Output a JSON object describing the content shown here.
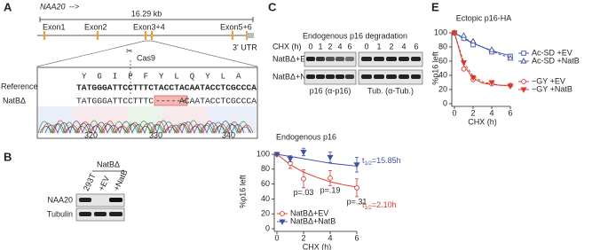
{
  "panel_labels": [
    "A",
    "B",
    "C",
    "D",
    "E"
  ],
  "panel_a": {
    "gene": "NAA20",
    "arrow": "-->",
    "scale": "16.29 kb",
    "exons": [
      "Exon1",
      "Exon2",
      "Exon3+4",
      "Exon5+6"
    ],
    "utr": "3' UTR",
    "cas9": "Cas9",
    "reference_label": "Reference",
    "amino_acids": [
      "Y",
      "G",
      "I",
      "P",
      "F",
      "Y",
      "L",
      "Q",
      "Y",
      "L",
      "A"
    ],
    "reference_seq": "TATGGGATTCCTTTCTACCTACAATACCTCGCCCA",
    "mutant_label": "NatBΔ",
    "mutant_seq_left": "TATGGGATTCCTTTC",
    "deletion": "------",
    "mutant_seq_right": "ACAATACCTCGCCCA",
    "trace_positions": [
      "320",
      "330",
      "340"
    ]
  },
  "panel_b": {
    "group": "NatBΔ",
    "lanes": [
      "293T",
      "+EV",
      "+NatB"
    ],
    "rows": [
      "NAA20",
      "Tubulin"
    ]
  },
  "panel_c": {
    "title": "Endogenous p16 degradation",
    "time_label": "CHX (h)",
    "times": [
      0,
      1,
      2,
      4,
      6
    ],
    "rows": [
      "NatBΔ+EV",
      "NatBΔ+NatB"
    ],
    "blots": [
      "p16 (α-p16)",
      "Tub. (α-Tub.)"
    ]
  },
  "chart_data": [
    {
      "type": "line",
      "title": "Endogenous p16",
      "x_label": "CHX (h)",
      "y_label": "%p16 left",
      "x": [
        0,
        1,
        2,
        4,
        6
      ],
      "xlim": [
        0,
        6
      ],
      "ylim": [
        0,
        100
      ],
      "xticks": [
        0,
        2,
        4,
        6
      ],
      "yticks": [
        0,
        20,
        40,
        60,
        80,
        100
      ],
      "legend": "lower left",
      "series": [
        {
          "name": "NatBΔ+EV",
          "color": "#d63b2b",
          "marker": "circle",
          "filled": false,
          "values": [
            100,
            88,
            67,
            68,
            55
          ],
          "errors": [
            0,
            7,
            12,
            10,
            12
          ],
          "p_values": [
            null,
            null,
            "p=.03",
            "p=.19",
            "p=.31"
          ],
          "half_life": {
            "t": "t",
            "sub": "1/2",
            "text": "=2.10h"
          }
        },
        {
          "name": "NatBΔ+NatB",
          "color": "#3f51a3",
          "marker": "triangle-down",
          "filled": true,
          "values": [
            100,
            94,
            103,
            96,
            86
          ],
          "errors": [
            0,
            4,
            5,
            7,
            10
          ],
          "half_life": {
            "t": "t",
            "sub": "1/2",
            "text": "=15.85h"
          }
        }
      ],
      "fits": [
        {
          "color": "#d63b2b",
          "dashed": false,
          "x": [
            0,
            1,
            2,
            3,
            4,
            5,
            6
          ],
          "values": [
            100,
            86,
            76,
            69,
            63,
            59,
            56
          ]
        },
        {
          "color": "#3f51a3",
          "dashed": false,
          "x": [
            0,
            1,
            2,
            3,
            4,
            5,
            6
          ],
          "values": [
            100,
            97,
            94,
            91,
            88,
            86,
            84
          ]
        }
      ]
    },
    {
      "type": "line",
      "title": "Ectopic p16-HA",
      "x_label": "CHX (h)",
      "y_label": "%p16 left",
      "x": [
        0,
        1,
        2,
        4,
        6
      ],
      "xlim": [
        0,
        6
      ],
      "ylim": [
        0,
        100
      ],
      "xticks": [
        0,
        2,
        4,
        6
      ],
      "yticks": [
        0,
        20,
        40,
        60,
        80,
        100
      ],
      "legend": "right",
      "series": [
        {
          "name": "Ac-SD +EV",
          "color": "#3f51a3",
          "marker": "square",
          "filled": false,
          "values": [
            100,
            92,
            83,
            73,
            67
          ]
        },
        {
          "name": "Ac-SD +NatB",
          "color": "#3f51a3",
          "marker": "triangle",
          "filled": false,
          "values": [
            100,
            96,
            88,
            76,
            64
          ]
        },
        {
          "name": "~GY +EV",
          "color": "#d63b2b",
          "marker": "circle",
          "filled": false,
          "values": [
            100,
            49,
            34,
            28,
            26
          ]
        },
        {
          "name": "~GY +NatB",
          "color": "#d63b2b",
          "marker": "triangle-down",
          "filled": true,
          "values": [
            100,
            58,
            37,
            30,
            25
          ]
        }
      ],
      "fits": [
        {
          "color": "#3f51a3",
          "dashed": false,
          "x": [
            0,
            1,
            2,
            3,
            4,
            5,
            6
          ],
          "values": [
            100,
            92,
            85,
            80,
            75,
            71,
            68
          ]
        },
        {
          "color": "#3f51a3",
          "dashed": true,
          "x": [
            0,
            1,
            2,
            3,
            4,
            5,
            6
          ],
          "values": [
            100,
            93,
            86,
            80,
            74,
            69,
            65
          ]
        },
        {
          "color": "#d63b2b",
          "dashed": false,
          "x": [
            0,
            1,
            2,
            3,
            4,
            5,
            6
          ],
          "values": [
            100,
            54,
            36,
            29,
            27,
            26,
            26
          ]
        },
        {
          "color": "#d63b2b",
          "dashed": true,
          "x": [
            0,
            1,
            2,
            3,
            4,
            5,
            6
          ],
          "values": [
            100,
            58,
            39,
            31,
            28,
            26,
            25
          ]
        }
      ]
    }
  ]
}
